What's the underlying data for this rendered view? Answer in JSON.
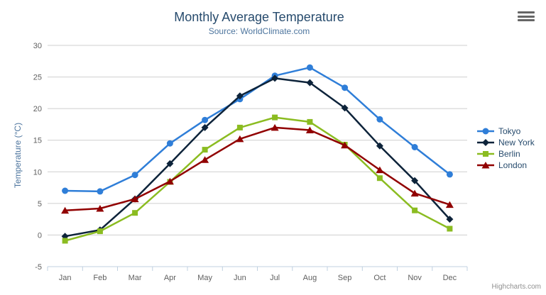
{
  "chart_data": {
    "type": "line",
    "title": "Monthly Average Temperature",
    "subtitle": "Source: WorldClimate.com",
    "categories": [
      "Jan",
      "Feb",
      "Mar",
      "Apr",
      "May",
      "Jun",
      "Jul",
      "Aug",
      "Sep",
      "Oct",
      "Nov",
      "Dec"
    ],
    "series": [
      {
        "name": "Tokyo",
        "color": "#2f7ed8",
        "marker": "circle",
        "values": [
          7.0,
          6.9,
          9.5,
          14.5,
          18.2,
          21.5,
          25.2,
          26.5,
          23.3,
          18.3,
          13.9,
          9.6
        ]
      },
      {
        "name": "New York",
        "color": "#0d233a",
        "marker": "diamond",
        "values": [
          -0.2,
          0.8,
          5.7,
          11.3,
          17.0,
          22.0,
          24.8,
          24.1,
          20.1,
          14.1,
          8.6,
          2.5
        ]
      },
      {
        "name": "Berlin",
        "color": "#8bbc21",
        "marker": "square",
        "values": [
          -0.9,
          0.6,
          3.5,
          8.4,
          13.5,
          17.0,
          18.6,
          17.9,
          14.3,
          9.0,
          3.9,
          1.0
        ]
      },
      {
        "name": "London",
        "color": "#910000",
        "marker": "triangle",
        "values": [
          3.9,
          4.2,
          5.7,
          8.5,
          11.9,
          15.2,
          17.0,
          16.6,
          14.2,
          10.3,
          6.6,
          4.8
        ]
      }
    ],
    "xlabel": "",
    "ylabel": "Temperature (°C)",
    "ylim": [
      -5,
      30
    ],
    "ytick_interval": 5,
    "yticks": [
      -5,
      0,
      5,
      10,
      15,
      20,
      25,
      30
    ],
    "grid": true,
    "legend_position": "right"
  },
  "credits": "Highcharts.com",
  "icons": {
    "export_menu": "hamburger-icon"
  },
  "colors": {
    "title": "#274b6d",
    "subtitle": "#4d759e",
    "axis_title": "#4d759e",
    "axis_labels": "#606060",
    "grid": "#cfcfcf",
    "axis_line": "#c0d0e0",
    "legend_text": "#274b6d",
    "credits": "#909090",
    "export_icon": "#666666",
    "background": "#ffffff"
  }
}
